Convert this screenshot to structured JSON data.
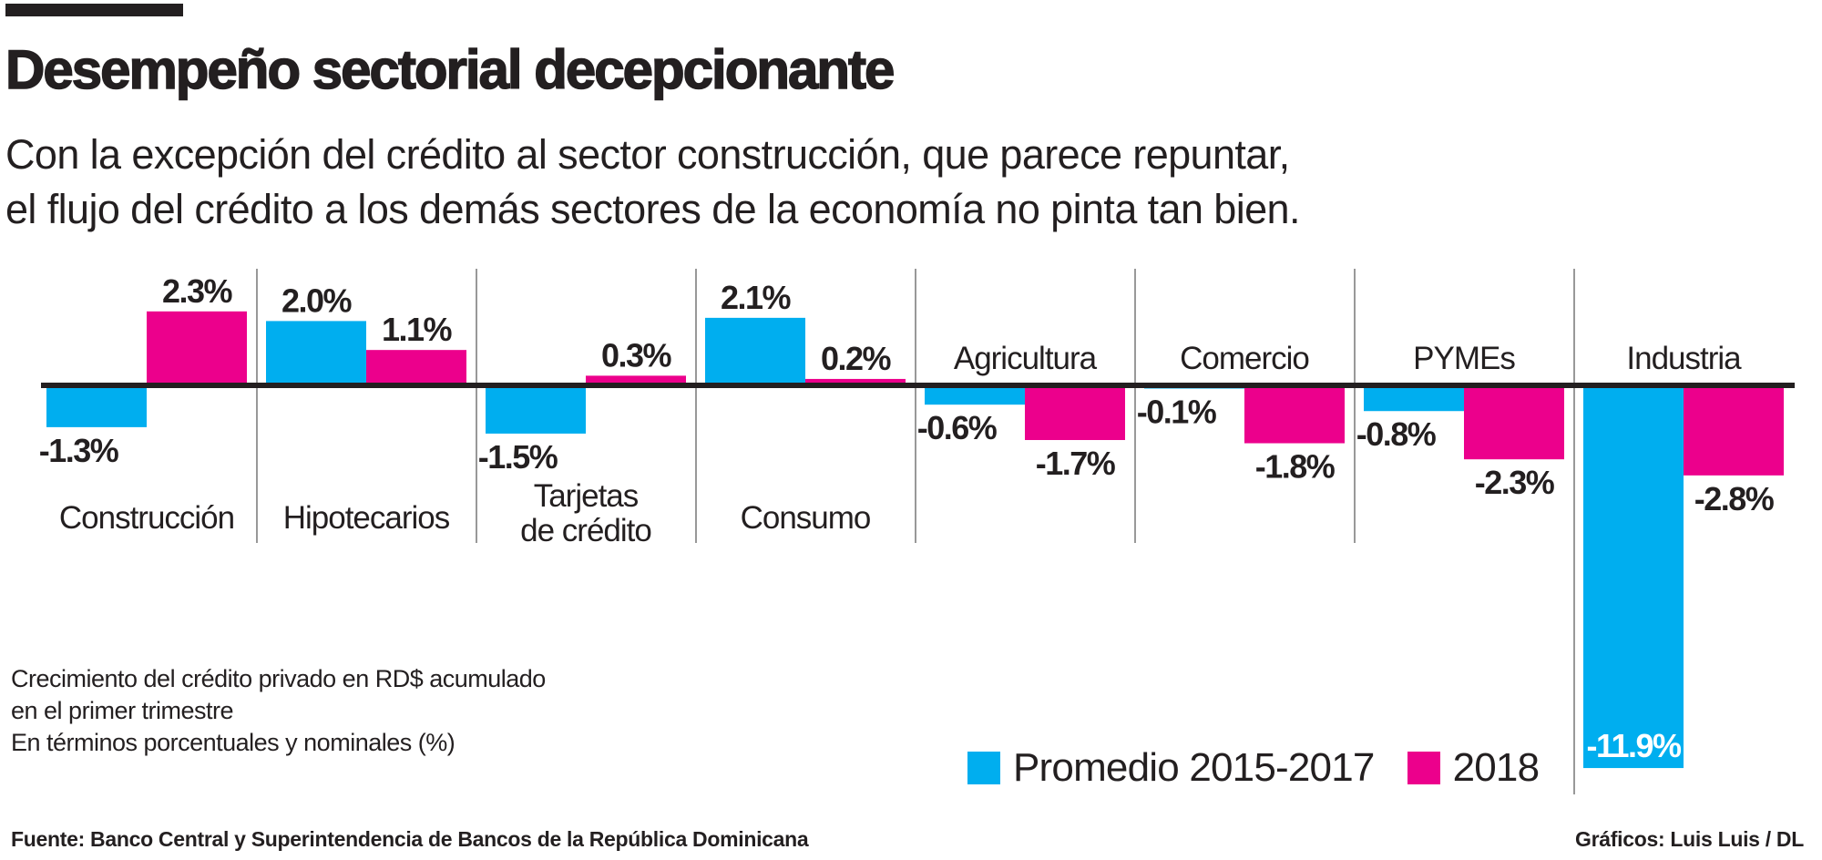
{
  "header": {
    "title": "Desempeño sectorial decepcionante",
    "subtitle_lines": [
      "Con la excepción del crédito al sector construcción, que parece repuntar,",
      "el flujo del crédito a los demás sectores de la economía no pinta tan bien."
    ]
  },
  "colors": {
    "promedio": "#00AEEF",
    "y2018": "#EC008C",
    "text": "#231F20",
    "value_on_bar": "#FFFFFF"
  },
  "chart_data": {
    "type": "bar",
    "title": "Desempeño sectorial decepcionante",
    "categories": [
      "Construcción",
      "Hipotecarios",
      "Tarjetas de crédito",
      "Consumo",
      "Agricultura",
      "Comercio",
      "PYMEs",
      "Industria"
    ],
    "category_lines": [
      [
        "Construcción"
      ],
      [
        "Hipotecarios"
      ],
      [
        "Tarjetas",
        "de crédito"
      ],
      [
        "Consumo"
      ],
      [
        "Agricultura"
      ],
      [
        "Comercio"
      ],
      [
        "PYMEs"
      ],
      [
        "Industria"
      ]
    ],
    "series": [
      {
        "name": "Promedio 2015-2017",
        "values": [
          -1.3,
          2.0,
          -1.5,
          2.1,
          -0.6,
          -0.1,
          -0.8,
          -11.9
        ],
        "labels": [
          "-1.3%",
          "2.0%",
          "-1.5%",
          "2.1%",
          "-0.6%",
          "-0.1%",
          "-0.8%",
          "-11.9%"
        ]
      },
      {
        "name": "2018",
        "values": [
          2.3,
          1.1,
          0.3,
          0.2,
          -1.7,
          -1.8,
          -2.3,
          -2.8
        ],
        "labels": [
          "2.3%",
          "1.1%",
          "0.3%",
          "0.2%",
          "-1.7%",
          "-1.8%",
          "-2.3%",
          "-2.8%"
        ]
      }
    ],
    "unit": "%",
    "ylim": [
      -11.9,
      2.3
    ],
    "grid": false,
    "legend_placement": "bottom-right"
  },
  "note_lines": [
    "Crecimiento del crédito privado en RD$ acumulado",
    "en el primer trimestre",
    "En términos porcentuales y nominales (%)"
  ],
  "legend": [
    {
      "label": "Promedio 2015-2017"
    },
    {
      "label": "2018"
    }
  ],
  "footer": {
    "source": "Fuente: Banco Central y Superintendencia de Bancos de la República Dominicana",
    "credit": "Gráficos: Luis Luis / DL"
  }
}
